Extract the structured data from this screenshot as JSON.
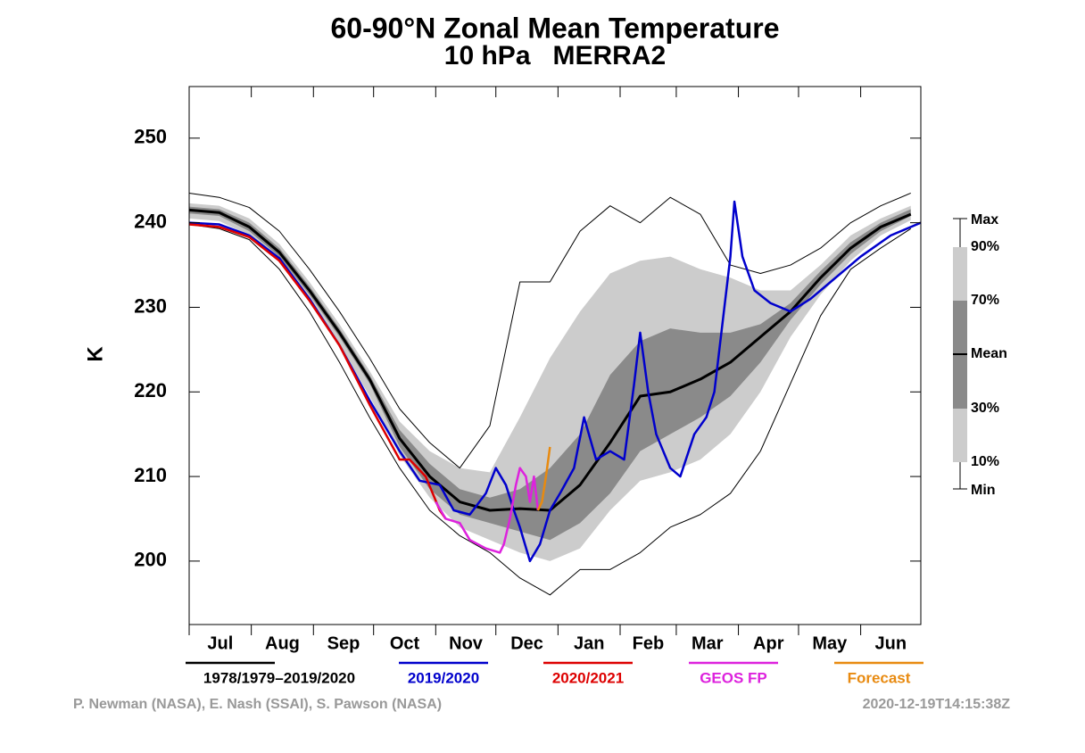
{
  "chart_data": {
    "type": "climatology",
    "title": "60-90°N Zonal Mean Temperature",
    "subtitle": "10 hPa   MERRA2",
    "y_label": "K",
    "xlim": [
      0,
      365
    ],
    "xticks": [
      {
        "value": 0,
        "label": "Jul"
      },
      {
        "value": 31,
        "label": "Aug"
      },
      {
        "value": 62,
        "label": "Sep"
      },
      {
        "value": 92,
        "label": "Oct"
      },
      {
        "value": 123,
        "label": "Nov"
      },
      {
        "value": 153,
        "label": "Dec"
      },
      {
        "value": 184,
        "label": "Jan"
      },
      {
        "value": 215,
        "label": "Feb"
      },
      {
        "value": 243,
        "label": "Mar"
      },
      {
        "value": 274,
        "label": "Apr"
      },
      {
        "value": 304,
        "label": "May"
      },
      {
        "value": 335,
        "label": "Jun"
      }
    ],
    "ylim": [
      192.5,
      256.1
    ],
    "yticks": [
      200,
      210,
      220,
      230,
      240,
      250
    ],
    "climatology_label": "1978/1979–2019/2020",
    "climatology_color": "#000000",
    "x": [
      0,
      15,
      30,
      45,
      60,
      75,
      90,
      105,
      120,
      135,
      150,
      165,
      180,
      195,
      210,
      225,
      240,
      255,
      270,
      285,
      300,
      315,
      330,
      345,
      360
    ],
    "stats": [
      {
        "name": "Max",
        "values": [
          243.5,
          243,
          241.8,
          239,
          234.5,
          229.5,
          224,
          218,
          214,
          211,
          216,
          233,
          233,
          239,
          242,
          240,
          243,
          241,
          235,
          234,
          235,
          237,
          240,
          242,
          243.5
        ]
      },
      {
        "name": "90%",
        "values": [
          242.3,
          242,
          240.5,
          237.5,
          233,
          228,
          222.5,
          216.5,
          213,
          211,
          210.5,
          217,
          224,
          229.5,
          234,
          235.5,
          236,
          234.5,
          233.5,
          232,
          232,
          235,
          238.5,
          240.5,
          242
        ]
      },
      {
        "name": "70%",
        "values": [
          241.9,
          241.6,
          240,
          237,
          232.5,
          227.5,
          222,
          215.5,
          211.5,
          208.5,
          207.5,
          208.5,
          211,
          215,
          222,
          226,
          227.5,
          227,
          227,
          228,
          230.5,
          234.3,
          237.7,
          240,
          241.6
        ]
      },
      {
        "name": "Mean",
        "values": [
          241.5,
          241.2,
          239.5,
          236.5,
          232,
          227,
          221.5,
          214.5,
          210,
          207,
          206,
          206.2,
          206,
          209,
          214,
          219.5,
          220,
          221.5,
          223.5,
          226.5,
          229.5,
          233.5,
          237,
          239.5,
          241
        ]
      },
      {
        "name": "30%",
        "values": [
          241.1,
          240.8,
          239,
          236,
          231.5,
          226.5,
          221,
          213.5,
          208.5,
          205.5,
          204.5,
          203.5,
          202.5,
          204.5,
          208,
          213,
          215,
          217,
          219.5,
          223.5,
          228.5,
          232.7,
          236.3,
          239,
          240.8
        ]
      },
      {
        "name": "10%",
        "values": [
          240.5,
          240.2,
          238.5,
          235.5,
          230.8,
          225.5,
          219.5,
          212.5,
          207.5,
          204,
          202.5,
          201,
          200,
          201.5,
          206,
          209.5,
          210.5,
          212,
          215,
          220,
          226.5,
          231.5,
          235.5,
          238.5,
          240.3
        ]
      },
      {
        "name": "Min",
        "values": [
          239.8,
          239.3,
          238,
          234.5,
          229.5,
          223.5,
          217,
          211,
          206,
          203,
          201,
          198,
          196,
          199,
          199,
          201,
          204,
          205.5,
          208,
          213,
          221,
          229,
          234.5,
          237,
          239.3
        ]
      }
    ],
    "series": [
      {
        "name": "2019/2020",
        "color": "#0000cc",
        "x": [
          0,
          15,
          30,
          45,
          60,
          75,
          90,
          105,
          115,
          125,
          132,
          140,
          148,
          153,
          158,
          162,
          165,
          170,
          175,
          180,
          185,
          192,
          197,
          203,
          210,
          217,
          222,
          225,
          229,
          233,
          240,
          245,
          252,
          258,
          262,
          266,
          270,
          272,
          276,
          282,
          290,
          300,
          310,
          320,
          335,
          350,
          365
        ],
        "values": [
          240,
          239.8,
          238.5,
          235.8,
          231,
          225.5,
          219,
          213,
          209.5,
          209,
          206,
          205.5,
          208,
          211,
          209,
          206,
          204,
          200,
          202,
          206,
          208,
          211,
          217,
          212,
          213,
          212,
          221,
          227,
          220,
          215,
          211,
          210,
          215,
          217,
          220,
          228,
          236,
          242.5,
          236,
          232,
          230.5,
          229.5,
          231,
          233,
          236,
          238.5,
          240
        ]
      },
      {
        "name": "2020/2021",
        "color": "#dd0000",
        "x": [
          0,
          15,
          30,
          45,
          60,
          75,
          90,
          105,
          110,
          118,
          125,
          128
        ],
        "values": [
          239.8,
          239.5,
          238.3,
          235.5,
          230.8,
          225.5,
          218.5,
          212,
          212,
          210,
          206,
          205
        ]
      },
      {
        "name": "GEOS FP",
        "color": "#dd22dd",
        "x": [
          123,
          128,
          135,
          140,
          148,
          155,
          157,
          160,
          163,
          165,
          168,
          170,
          172,
          174
        ],
        "values": [
          207,
          205,
          204.5,
          202.5,
          201.5,
          201,
          202,
          205,
          209,
          211,
          210,
          207,
          210,
          206
        ]
      },
      {
        "name": "Forecast",
        "color": "#e88a10",
        "x": [
          174,
          176,
          178,
          180
        ],
        "values": [
          206,
          207,
          210,
          213.5
        ]
      }
    ],
    "credits": "P. Newman (NASA), E. Nash (SSAI), S. Pawson (NASA)",
    "timestamp": "2020-12-19T14:15:38Z"
  }
}
